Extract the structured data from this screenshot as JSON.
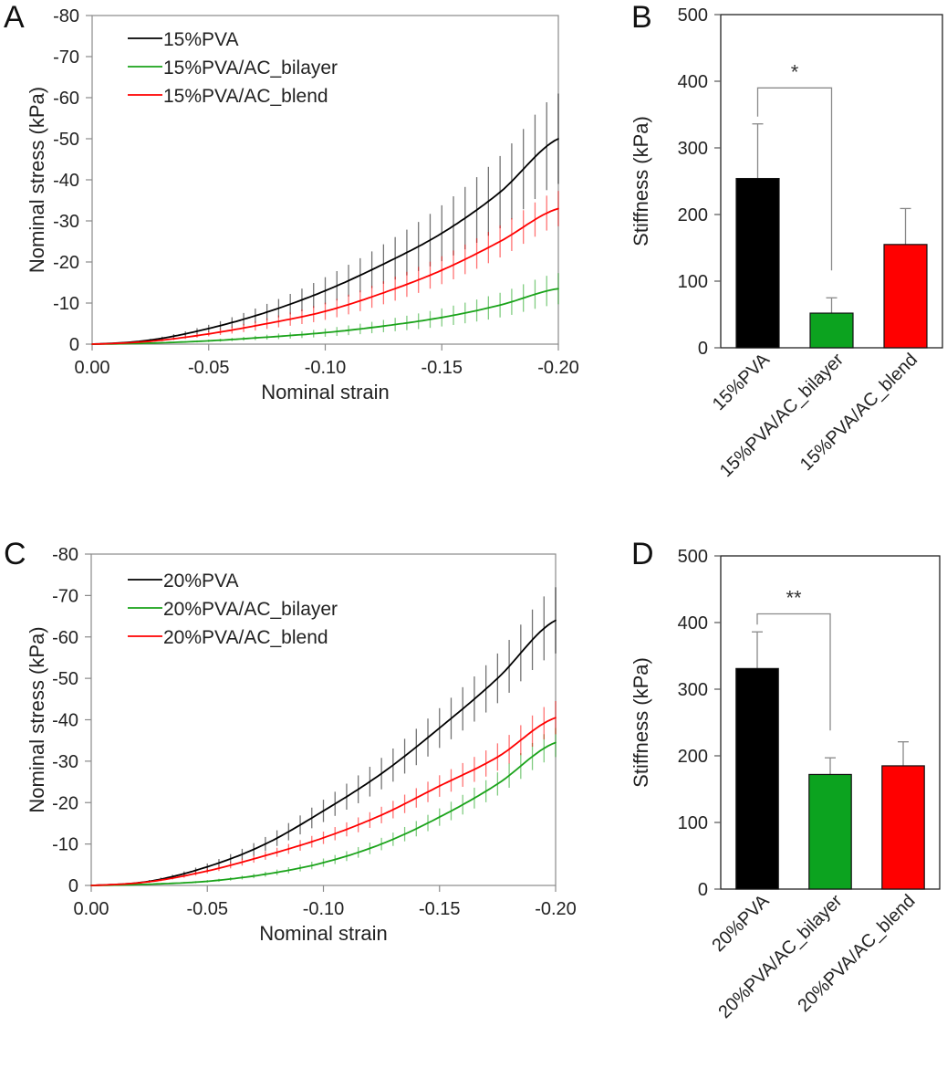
{
  "figure": {
    "panels": [
      "A",
      "B",
      "C",
      "D"
    ]
  },
  "chart_data": [
    {
      "panel": "A",
      "type": "line",
      "title": "",
      "xlabel": "Nominal strain",
      "ylabel": "Nominal stress (kPa)",
      "xlim": [
        0,
        -0.2
      ],
      "ylim": [
        0,
        -80
      ],
      "xticks": [
        "0.00",
        "-0.05",
        "-0.10",
        "-0.15",
        "-0.20"
      ],
      "xtick_values": [
        0,
        -0.05,
        -0.1,
        -0.15,
        -0.2
      ],
      "yticks": [
        "0",
        "-10",
        "-20",
        "-30",
        "-40",
        "-50",
        "-60",
        "-70",
        "-80"
      ],
      "ytick_values": [
        0,
        -10,
        -20,
        -30,
        -40,
        -50,
        -60,
        -70,
        -80
      ],
      "grid": false,
      "legend_position": "top-left",
      "x": [
        0,
        -0.025,
        -0.05,
        -0.075,
        -0.1,
        -0.125,
        -0.15,
        -0.175,
        -0.2
      ],
      "series": [
        {
          "name": "15%PVA",
          "color": "#000000",
          "values": [
            0,
            -1.0,
            -3.8,
            -7.8,
            -13,
            -19.5,
            -27,
            -37,
            -50
          ],
          "errors": [
            0,
            0.3,
            0.9,
            2.0,
            3.3,
            4.8,
            6.8,
            8.8,
            11
          ]
        },
        {
          "name": "15%PVA/AC_bilayer",
          "color": "#1aa31a",
          "values": [
            0,
            -0.25,
            -0.8,
            -1.7,
            -2.8,
            -4.4,
            -6.5,
            -9.5,
            -13.5
          ],
          "errors": [
            0,
            0.1,
            0.3,
            0.6,
            1.0,
            1.5,
            2.2,
            3.0,
            3.8
          ]
        },
        {
          "name": "15%PVA/AC_blend",
          "color": "#ff0000",
          "values": [
            0,
            -0.7,
            -2.5,
            -5.0,
            -8.0,
            -12.5,
            -18,
            -25,
            -33
          ],
          "errors": [
            0,
            0.2,
            0.6,
            1.3,
            2.1,
            2.8,
            3.4,
            3.9,
            4.3
          ]
        }
      ]
    },
    {
      "panel": "B",
      "type": "bar",
      "title": "",
      "xlabel": "",
      "ylabel": "Stiffness (kPa)",
      "ylim": [
        0,
        500
      ],
      "yticks": [
        "0",
        "100",
        "200",
        "300",
        "400",
        "500"
      ],
      "ytick_values": [
        0,
        100,
        200,
        300,
        400,
        500
      ],
      "grid": false,
      "categories": [
        "15%PVA",
        "15%PVA/AC_bilayer",
        "15%PVA/AC_blend"
      ],
      "values": [
        254,
        52,
        155
      ],
      "errors": [
        82,
        23,
        54
      ],
      "colors": [
        "#000000",
        "#0ca31f",
        "#ff0000"
      ],
      "significance": [
        {
          "from": 0,
          "to": 1,
          "label": "*",
          "level": 390
        }
      ]
    },
    {
      "panel": "C",
      "type": "line",
      "title": "",
      "xlabel": "Nominal strain",
      "ylabel": "Nominal stress (kPa)",
      "xlim": [
        0,
        -0.2
      ],
      "ylim": [
        0,
        -80
      ],
      "xticks": [
        "0.00",
        "-0.05",
        "-0.10",
        "-0.15",
        "-0.20"
      ],
      "xtick_values": [
        0,
        -0.05,
        -0.1,
        -0.15,
        -0.2
      ],
      "yticks": [
        "0",
        "-10",
        "-20",
        "-30",
        "-40",
        "-50",
        "-60",
        "-70",
        "-80"
      ],
      "ytick_values": [
        0,
        -10,
        -20,
        -30,
        -40,
        -50,
        -60,
        -70,
        -80
      ],
      "grid": false,
      "legend_position": "top-left",
      "x": [
        0,
        -0.025,
        -0.05,
        -0.075,
        -0.1,
        -0.125,
        -0.15,
        -0.175,
        -0.2
      ],
      "series": [
        {
          "name": "20%PVA",
          "color": "#000000",
          "values": [
            0,
            -1.0,
            -4.5,
            -10,
            -18,
            -27,
            -38,
            -50,
            -64
          ],
          "errors": [
            0,
            0.3,
            0.8,
            1.7,
            2.7,
            3.8,
            4.8,
            6.0,
            8.0
          ]
        },
        {
          "name": "20%PVA/AC_bilayer",
          "color": "#1aa31a",
          "values": [
            0,
            -0.3,
            -1.0,
            -2.7,
            -5.5,
            -10,
            -16.5,
            -24.5,
            -34.5
          ],
          "errors": [
            0,
            0.1,
            0.3,
            0.6,
            1.0,
            1.5,
            2.1,
            2.8,
            3.5
          ]
        },
        {
          "name": "20%PVA/AC_blend",
          "color": "#ff0000",
          "values": [
            0,
            -0.9,
            -3.5,
            -7.2,
            -11.5,
            -17,
            -24,
            -31,
            -40.5
          ],
          "errors": [
            0,
            0.2,
            0.6,
            1.0,
            1.5,
            2.0,
            2.6,
            3.3,
            4.0
          ]
        }
      ]
    },
    {
      "panel": "D",
      "type": "bar",
      "title": "",
      "xlabel": "",
      "ylabel": "Stiffness (kPa)",
      "ylim": [
        0,
        500
      ],
      "yticks": [
        "0",
        "100",
        "200",
        "300",
        "400",
        "500"
      ],
      "ytick_values": [
        0,
        100,
        200,
        300,
        400,
        500
      ],
      "grid": false,
      "categories": [
        "20%PVA",
        "20%PVA/AC_bilayer",
        "20%PVA/AC_blend"
      ],
      "values": [
        331,
        172,
        185
      ],
      "errors": [
        55,
        25,
        36
      ],
      "colors": [
        "#000000",
        "#0ca31f",
        "#ff0000"
      ],
      "significance": [
        {
          "from": 0,
          "to": 1,
          "label": "**",
          "level": 413
        }
      ]
    }
  ]
}
